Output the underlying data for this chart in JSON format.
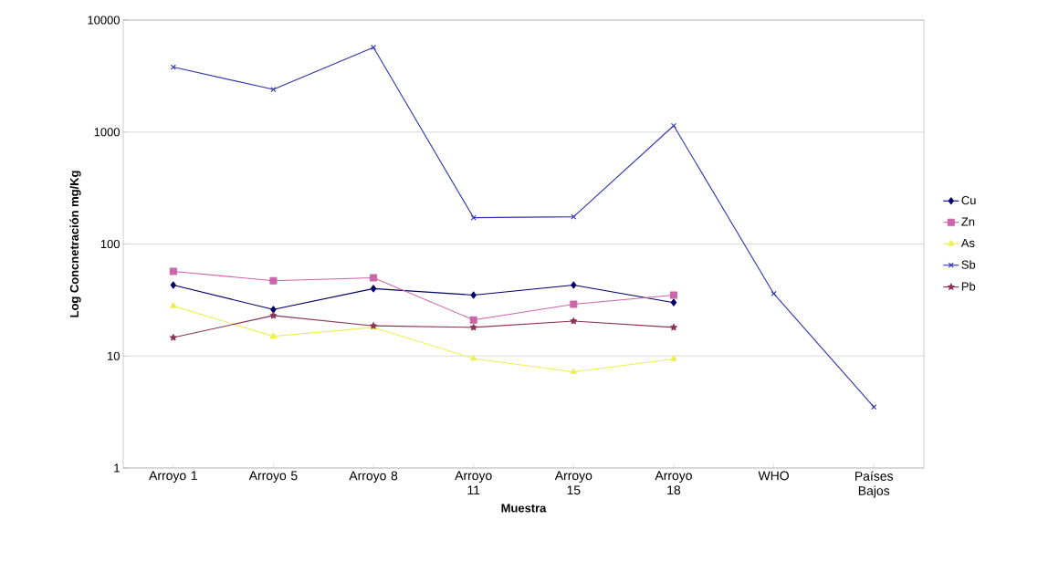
{
  "chart_data": {
    "type": "line",
    "xlabel": "Muestra",
    "ylabel": "Log Concnetración mg/Kg",
    "categories": [
      "Arroyo 1",
      "Arroyo 5",
      "Arroyo 8",
      "Arroyo 11",
      "Arroyo 15",
      "Arroyo 18",
      "WHO",
      "Países Bajos"
    ],
    "series": [
      {
        "name": "Cu",
        "color": "#000066",
        "marker": "diamond",
        "values": [
          43,
          26,
          40,
          35,
          43,
          30,
          null,
          null
        ]
      },
      {
        "name": "Zn",
        "color": "#cc66aa",
        "marker": "square",
        "values": [
          57,
          47,
          50,
          21,
          29,
          35,
          null,
          null
        ]
      },
      {
        "name": "As",
        "color": "#eeee55",
        "marker": "triangle",
        "values": [
          28,
          15,
          18,
          9.5,
          7.2,
          9.4,
          null,
          null
        ]
      },
      {
        "name": "Sb",
        "color": "#3333aa",
        "marker": "cross",
        "values": [
          3800,
          2400,
          5700,
          172,
          175,
          1140,
          36,
          3.5
        ]
      },
      {
        "name": "Pb",
        "color": "#883355",
        "marker": "star",
        "values": [
          14.6,
          23,
          18.6,
          18,
          20.5,
          18,
          null,
          null
        ]
      }
    ],
    "log": "y",
    "ylim": [
      1,
      10000
    ],
    "yticks": [
      1,
      10,
      100,
      1000,
      10000
    ],
    "grid": "y",
    "legend": "right"
  }
}
